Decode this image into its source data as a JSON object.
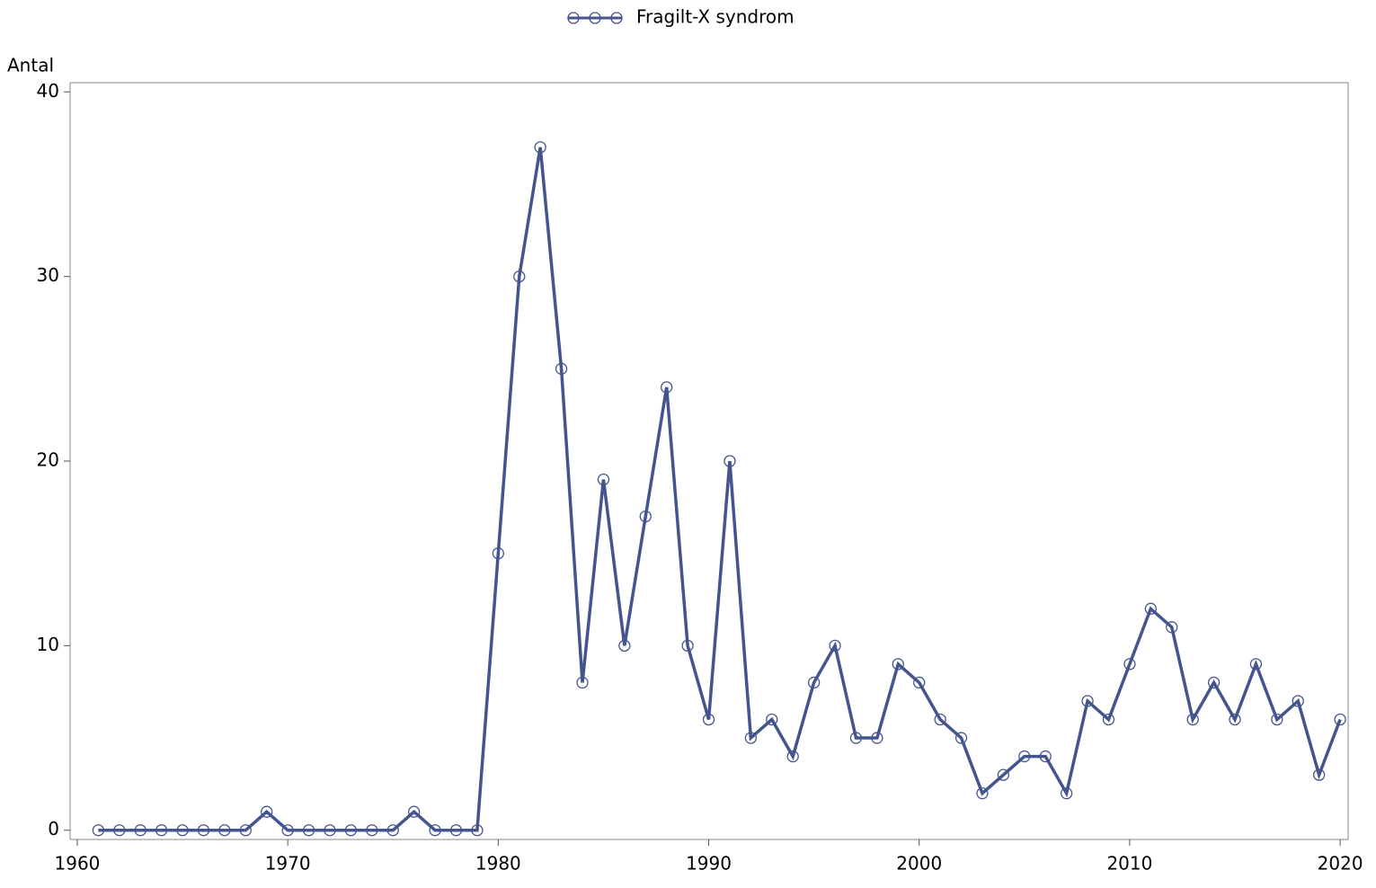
{
  "chart_data": {
    "type": "line",
    "ylabel": "Antal",
    "x": [
      1961,
      1962,
      1963,
      1964,
      1965,
      1966,
      1967,
      1968,
      1969,
      1970,
      1971,
      1972,
      1973,
      1974,
      1975,
      1976,
      1977,
      1978,
      1979,
      1980,
      1981,
      1982,
      1983,
      1984,
      1985,
      1986,
      1987,
      1988,
      1989,
      1990,
      1991,
      1992,
      1993,
      1994,
      1995,
      1996,
      1997,
      1998,
      1999,
      2000,
      2001,
      2002,
      2003,
      2004,
      2005,
      2006,
      2007,
      2008,
      2009,
      2010,
      2011,
      2012,
      2013,
      2014,
      2015,
      2016,
      2017,
      2018,
      2019,
      2020
    ],
    "series": [
      {
        "name": "Fragilt-X syndrom",
        "color": "#44548e",
        "values": [
          0,
          0,
          0,
          0,
          0,
          0,
          0,
          0,
          1,
          0,
          0,
          0,
          0,
          0,
          0,
          1,
          0,
          0,
          0,
          15,
          30,
          37,
          25,
          8,
          19,
          10,
          17,
          24,
          10,
          6,
          20,
          5,
          6,
          4,
          8,
          10,
          5,
          5,
          9,
          8,
          6,
          5,
          2,
          3,
          4,
          4,
          2,
          7,
          6,
          9,
          12,
          11,
          6,
          8,
          6,
          9,
          6,
          7,
          3,
          6
        ]
      }
    ],
    "xlim": [
      1959.66,
      2020.38
    ],
    "xticks": [
      1960,
      1970,
      1980,
      1990,
      2000,
      2010,
      2020
    ],
    "ylim": [
      -0.5,
      40.5
    ],
    "yticks": [
      0,
      10,
      20,
      30,
      40
    ],
    "legend": "top"
  }
}
